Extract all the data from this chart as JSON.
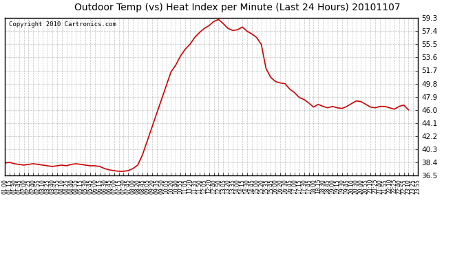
{
  "title": "Outdoor Temp (vs) Heat Index per Minute (Last 24 Hours) 20101107",
  "copyright": "Copyright 2010 Cartronics.com",
  "line_color": "#cc0000",
  "bg_color": "#ffffff",
  "grid_color": "#aaaaaa",
  "ylim": [
    36.5,
    59.3
  ],
  "yticks": [
    36.5,
    38.4,
    40.3,
    42.2,
    44.1,
    46.0,
    47.9,
    49.8,
    51.7,
    53.6,
    55.5,
    57.4,
    59.3
  ],
  "xtick_labels": [
    "01:00",
    "01:15",
    "01:30",
    "01:45",
    "02:00",
    "02:25",
    "02:40",
    "02:55",
    "03:10",
    "03:25",
    "03:40",
    "03:55",
    "04:10",
    "04:25",
    "04:40",
    "04:55",
    "05:15",
    "05:30",
    "05:45",
    "06:00",
    "06:15",
    "06:30",
    "06:45",
    "07:00",
    "07:15",
    "07:30",
    "07:45",
    "08:00",
    "08:20",
    "08:45",
    "09:05",
    "09:20",
    "09:35",
    "09:50",
    "10:05",
    "10:20",
    "10:40",
    "10:55",
    "11:05",
    "11:20",
    "11:35",
    "11:50",
    "12:05",
    "12:20",
    "12:40",
    "12:50",
    "13:05",
    "13:20",
    "13:35",
    "14:00",
    "14:15",
    "14:30",
    "14:45",
    "15:00",
    "15:20",
    "15:35",
    "15:45",
    "16:00",
    "16:20",
    "16:30",
    "16:45",
    "17:00",
    "17:15",
    "17:30",
    "17:45",
    "18:00",
    "18:15",
    "18:30",
    "18:45",
    "19:00",
    "19:15",
    "19:30",
    "19:45",
    "20:10",
    "20:30",
    "20:40",
    "20:55",
    "21:10",
    "21:25",
    "21:40",
    "21:55",
    "22:10",
    "22:25",
    "22:40",
    "22:55",
    "23:10",
    "23:25",
    "23:55"
  ],
  "curve_x": [
    0,
    1,
    2,
    3,
    4,
    5,
    6,
    7,
    8,
    9,
    10,
    11,
    12,
    13,
    14,
    15,
    16,
    17,
    18,
    19,
    20,
    21,
    22,
    23,
    24,
    25,
    26,
    27,
    28,
    29,
    30,
    31,
    32,
    33,
    34,
    35,
    36,
    37,
    38,
    39,
    40,
    41,
    42,
    43,
    44,
    45,
    46,
    47,
    48,
    49,
    50,
    51,
    52,
    53,
    54,
    55,
    56,
    57,
    58,
    59,
    60,
    61,
    62,
    63,
    64,
    65,
    66,
    67,
    68,
    69,
    70,
    71,
    72,
    73,
    74,
    75,
    76,
    77,
    78,
    79,
    80,
    81,
    82,
    83,
    84,
    85
  ],
  "curve_y": [
    38.3,
    38.4,
    38.2,
    38.1,
    38.0,
    38.1,
    38.2,
    38.1,
    38.0,
    37.9,
    37.8,
    37.9,
    38.0,
    37.9,
    38.1,
    38.2,
    38.1,
    38.0,
    37.9,
    37.9,
    37.8,
    37.5,
    37.3,
    37.2,
    37.1,
    37.1,
    37.2,
    37.5,
    38.0,
    39.5,
    41.5,
    43.5,
    45.5,
    47.5,
    49.5,
    51.5,
    52.5,
    53.8,
    54.8,
    55.5,
    56.5,
    57.2,
    57.8,
    58.2,
    58.8,
    59.1,
    58.5,
    57.8,
    57.5,
    57.6,
    58.0,
    57.4,
    57.0,
    56.5,
    55.5,
    52.0,
    50.7,
    50.1,
    49.9,
    49.8,
    49.0,
    48.5,
    47.8,
    47.5,
    47.0,
    46.4,
    46.8,
    46.5,
    46.3,
    46.5,
    46.3,
    46.2,
    46.5,
    46.9,
    47.3,
    47.2,
    46.8,
    46.4,
    46.3,
    46.5,
    46.5,
    46.3,
    46.1,
    46.5,
    46.7,
    46.0
  ]
}
